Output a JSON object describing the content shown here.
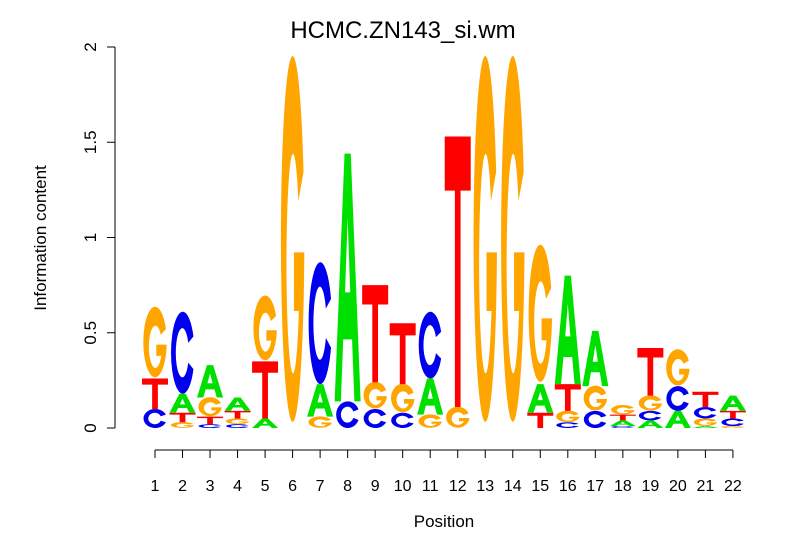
{
  "chart_data": {
    "type": "sequence-logo",
    "title": "HCMC.ZN143_si.wm",
    "xlabel": "Position",
    "ylabel": "Information content",
    "ylim": [
      0,
      2
    ],
    "yticks": [
      "0",
      "0.5",
      "1",
      "1.5",
      "2"
    ],
    "ytick_values": [
      0,
      0.5,
      1,
      1.5,
      2
    ],
    "colors": {
      "A": "#00e000",
      "C": "#0000ee",
      "G": "#ffa500",
      "T": "#ff0000"
    },
    "positions": [
      {
        "label": "1",
        "stack": [
          [
            "C",
            0.1
          ],
          [
            "T",
            0.16
          ],
          [
            "G",
            0.37
          ]
        ]
      },
      {
        "label": "2",
        "stack": [
          [
            "G",
            0.03
          ],
          [
            "T",
            0.05
          ],
          [
            "A",
            0.1
          ],
          [
            "C",
            0.43
          ]
        ]
      },
      {
        "label": "3",
        "stack": [
          [
            "C",
            0.02
          ],
          [
            "T",
            0.04
          ],
          [
            "G",
            0.1
          ],
          [
            "A",
            0.17
          ]
        ]
      },
      {
        "label": "4",
        "stack": [
          [
            "C",
            0.02
          ],
          [
            "G",
            0.03
          ],
          [
            "T",
            0.04
          ],
          [
            "A",
            0.07
          ]
        ]
      },
      {
        "label": "5",
        "stack": [
          [
            "A",
            0.05
          ],
          [
            "T",
            0.3
          ],
          [
            "G",
            0.34
          ]
        ]
      },
      {
        "label": "6",
        "stack": [
          [
            "G",
            1.92
          ]
        ]
      },
      {
        "label": "7",
        "stack": [
          [
            "G",
            0.06
          ],
          [
            "A",
            0.17
          ],
          [
            "C",
            0.64
          ]
        ]
      },
      {
        "label": "8",
        "stack": [
          [
            "C",
            0.14
          ],
          [
            "A",
            1.3
          ]
        ]
      },
      {
        "label": "9",
        "stack": [
          [
            "C",
            0.1
          ],
          [
            "G",
            0.14
          ],
          [
            "T",
            0.51
          ]
        ]
      },
      {
        "label": "10",
        "stack": [
          [
            "C",
            0.08
          ],
          [
            "G",
            0.15
          ],
          [
            "T",
            0.32
          ]
        ]
      },
      {
        "label": "11",
        "stack": [
          [
            "G",
            0.07
          ],
          [
            "A",
            0.19
          ],
          [
            "C",
            0.35
          ]
        ]
      },
      {
        "label": "12",
        "stack": [
          [
            "G",
            0.11
          ],
          [
            "T",
            1.42
          ]
        ]
      },
      {
        "label": "13",
        "stack": [
          [
            "G",
            1.92
          ]
        ]
      },
      {
        "label": "14",
        "stack": [
          [
            "G",
            1.92
          ]
        ]
      },
      {
        "label": "15",
        "stack": [
          [
            "T",
            0.08
          ],
          [
            "A",
            0.15
          ],
          [
            "G",
            0.72
          ]
        ]
      },
      {
        "label": "16",
        "stack": [
          [
            "C",
            0.03
          ],
          [
            "G",
            0.06
          ],
          [
            "T",
            0.14
          ],
          [
            "A",
            0.57
          ]
        ]
      },
      {
        "label": "17",
        "stack": [
          [
            "C",
            0.09
          ],
          [
            "G",
            0.13
          ],
          [
            "A",
            0.29
          ]
        ]
      },
      {
        "label": "18",
        "stack": [
          [
            "C",
            0.01
          ],
          [
            "A",
            0.03
          ],
          [
            "T",
            0.03
          ],
          [
            "G",
            0.05
          ]
        ]
      },
      {
        "label": "19",
        "stack": [
          [
            "A",
            0.04
          ],
          [
            "C",
            0.05
          ],
          [
            "G",
            0.08
          ],
          [
            "T",
            0.25
          ]
        ]
      },
      {
        "label": "20",
        "stack": [
          [
            "A",
            0.09
          ],
          [
            "C",
            0.13
          ],
          [
            "G",
            0.19
          ]
        ]
      },
      {
        "label": "21",
        "stack": [
          [
            "A",
            0.01
          ],
          [
            "G",
            0.04
          ],
          [
            "C",
            0.06
          ],
          [
            "T",
            0.08
          ]
        ]
      },
      {
        "label": "22",
        "stack": [
          [
            "G",
            0.01
          ],
          [
            "C",
            0.04
          ],
          [
            "T",
            0.04
          ],
          [
            "A",
            0.08
          ]
        ]
      }
    ]
  }
}
